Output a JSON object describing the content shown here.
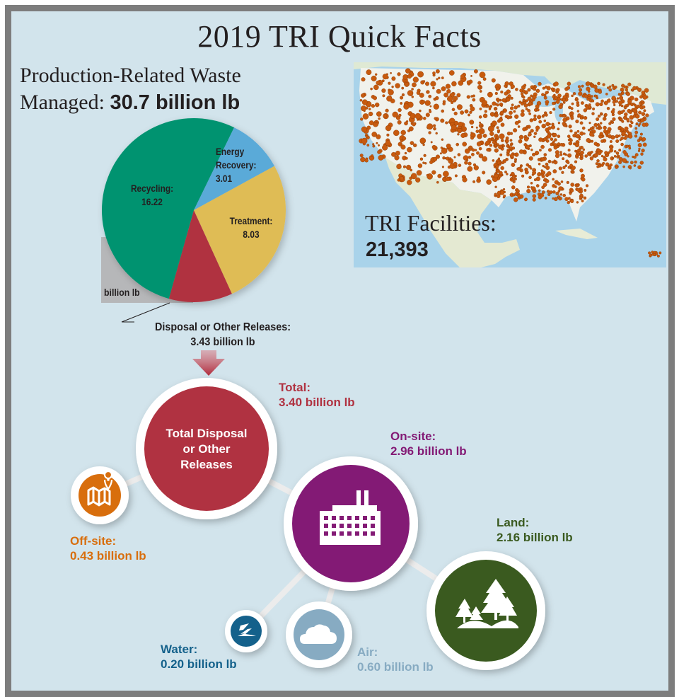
{
  "title": "2019 TRI Quick Facts",
  "production_waste": {
    "heading_line1": "Production-Related Waste",
    "heading_line2_prefix": "Managed: ",
    "heading_value": "30.7 billion lb",
    "unit_tag": "billion lb"
  },
  "pie": {
    "recycling_label": "Recycling:",
    "recycling_value": "16.22",
    "energy_label_1": "Energy",
    "energy_label_2": "Recovery:",
    "energy_value": "3.01",
    "treatment_label": "Treatment:",
    "treatment_value": "8.03",
    "disposal_label": "Disposal or Other Releases:",
    "disposal_value": "3.43 billion lb"
  },
  "map": {
    "label": "TRI Facilities:",
    "count": "21,393"
  },
  "releases": {
    "total_circle_line1": "Total Disposal",
    "total_circle_line2": "or Other",
    "total_circle_line3": "Releases",
    "total_label": "Total:",
    "total_value": "3.40 billion lb",
    "onsite_label": "On-site:",
    "onsite_value": "2.96 billion lb",
    "offsite_label": "Off-site:",
    "offsite_value": "0.43 billion lb",
    "land_label": "Land:",
    "land_value": "2.16 billion lb",
    "water_label": "Water:",
    "water_value": "0.20 billion lb",
    "air_label": "Air:",
    "air_value": "0.60 billion lb"
  },
  "colors": {
    "background": "#d2e4ec",
    "frame": "#7d7d7d",
    "recycling": "#00936f",
    "energy_recovery": "#5aaad8",
    "treatment": "#dfbc55",
    "disposal": "#b03241",
    "offsite": "#d86e0d",
    "onsite": "#831a75",
    "land": "#3a5a1f",
    "water": "#14618b",
    "air": "#87abc2",
    "facility_dot": "#c75a0e"
  },
  "chart_data": [
    {
      "type": "pie",
      "title": "Production-Related Waste Managed: 30.7 billion lb",
      "unit": "billion lb",
      "categories": [
        "Recycling",
        "Energy Recovery",
        "Treatment",
        "Disposal or Other Releases"
      ],
      "values": [
        16.22,
        3.01,
        8.03,
        3.43
      ],
      "total": 30.7
    },
    {
      "type": "bubble-hierarchy",
      "title": "Total Disposal or Other Releases",
      "unit": "billion lb",
      "total": 3.4,
      "children": [
        {
          "name": "Off-site",
          "value": 0.43
        },
        {
          "name": "On-site",
          "value": 2.96,
          "children": [
            {
              "name": "Land",
              "value": 2.16
            },
            {
              "name": "Air",
              "value": 0.6
            },
            {
              "name": "Water",
              "value": 0.2
            }
          ]
        }
      ]
    },
    {
      "type": "map",
      "title": "TRI Facilities",
      "value": 21393
    }
  ]
}
